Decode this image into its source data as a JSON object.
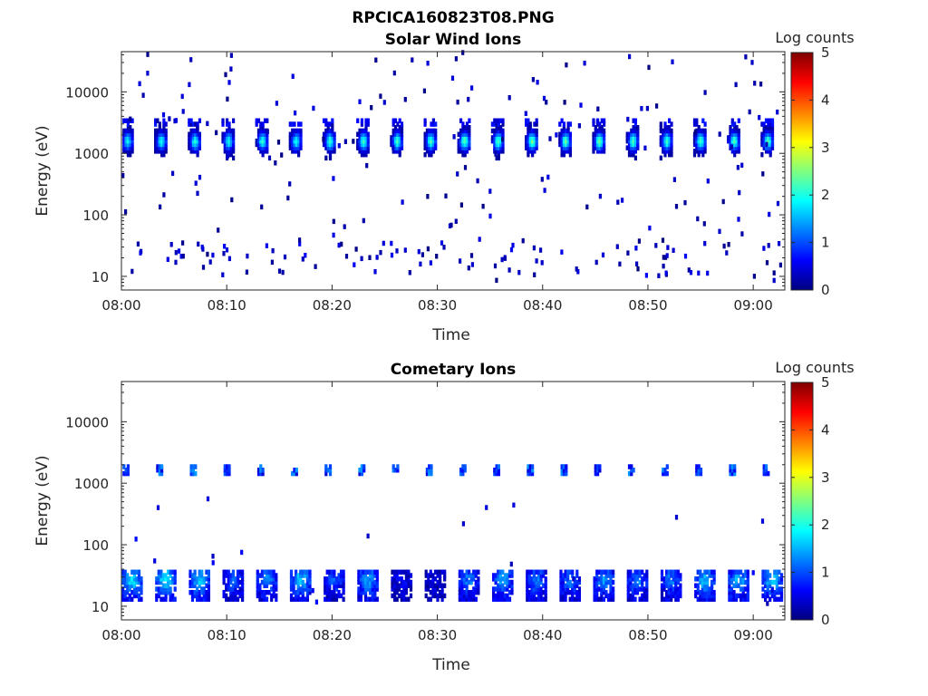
{
  "figure": {
    "title": "RPCICA160823T08.PNG"
  },
  "colormap": {
    "stops": [
      "#00007f",
      "#0000ff",
      "#007fff",
      "#00ffff",
      "#7fff7f",
      "#ffff00",
      "#ff7f00",
      "#ff0000",
      "#7f0000"
    ]
  },
  "chart_data": [
    {
      "type": "heatmap",
      "title": "Solar Wind Ions",
      "xlabel": "Time",
      "ylabel": "Energy (eV)",
      "y_scale": "log",
      "ylim": [
        6,
        45000
      ],
      "xlim": [
        "08:00",
        "09:03"
      ],
      "x_ticks": [
        "08:00",
        "08:10",
        "08:20",
        "08:30",
        "08:40",
        "08:50",
        "09:00"
      ],
      "y_ticks": [
        {
          "value": 10,
          "label": "10"
        },
        {
          "value": 100,
          "label": "100"
        },
        {
          "value": 1000,
          "label": "1000"
        },
        {
          "value": 10000,
          "label": "10000"
        }
      ],
      "colorbar": {
        "label": "Log counts",
        "min": 0,
        "max": 5,
        "ticks": [
          "0",
          "1",
          "2",
          "3",
          "4",
          "5"
        ]
      },
      "features": {
        "main_beam": {
          "period_minutes": 3.2,
          "first_time": "08:00",
          "peak_energy_eV": 1600,
          "peak_log_counts": [
            1.9,
            2.0,
            2.0,
            1.9,
            2.1,
            2.0,
            2.1,
            2.1,
            2.2,
            2.2,
            2.3,
            2.3,
            2.4,
            2.3,
            2.3,
            2.2,
            2.2,
            2.2,
            2.2,
            2.3
          ]
        },
        "low_energy_band": {
          "energy_range_eV": [
            10,
            40
          ],
          "log_counts_range": [
            0.0,
            0.6
          ]
        },
        "scattered_background": {
          "energy_range_eV": [
            8,
            45000
          ],
          "log_counts_range": [
            0.0,
            0.5
          ]
        }
      }
    },
    {
      "type": "heatmap",
      "title": "Cometary Ions",
      "xlabel": "Time",
      "ylabel": "Energy (eV)",
      "y_scale": "log",
      "ylim": [
        6,
        45000
      ],
      "xlim": [
        "08:00",
        "09:03"
      ],
      "x_ticks": [
        "08:00",
        "08:10",
        "08:20",
        "08:30",
        "08:40",
        "08:50",
        "09:00"
      ],
      "y_ticks": [
        {
          "value": 10,
          "label": "10"
        },
        {
          "value": 100,
          "label": "100"
        },
        {
          "value": 1000,
          "label": "1000"
        },
        {
          "value": 10000,
          "label": "10000"
        }
      ],
      "colorbar": {
        "label": "Log counts",
        "min": 0,
        "max": 5,
        "ticks": [
          "0",
          "1",
          "2",
          "3",
          "4",
          "5"
        ]
      },
      "features": {
        "high_energy_beam": {
          "period_minutes": 3.2,
          "first_time": "08:00",
          "energy_eV": 1650,
          "log_counts_range": [
            0.4,
            1.4
          ]
        },
        "low_energy_band": {
          "period_minutes": 3.2,
          "first_time": "08:00",
          "energy_range_eV": [
            13,
            40
          ],
          "peak_log_counts": [
            1.7,
            1.8,
            1.6,
            1.0,
            1.3,
            1.6,
            1.0,
            1.4,
            0.6,
            0.5,
            1.2,
            1.4,
            1.2,
            1.2,
            1.3,
            1.2,
            1.2,
            1.5,
            1.5,
            1.6
          ]
        },
        "scattered_background": {
          "energy_range_eV": [
            7,
            600
          ],
          "log_counts_range": [
            0.2,
            0.7
          ]
        }
      }
    }
  ]
}
